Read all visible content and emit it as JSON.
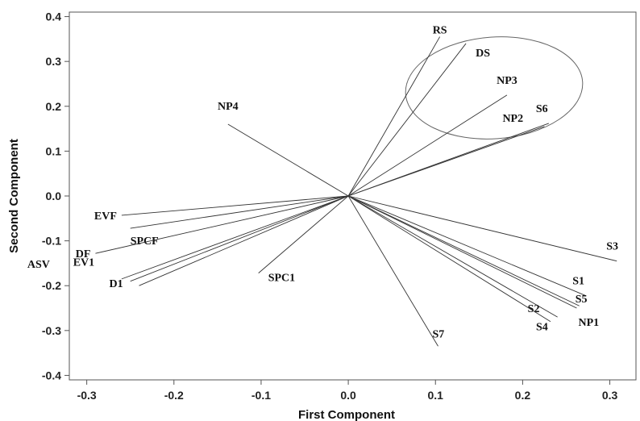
{
  "chart_data": {
    "type": "scatter",
    "subtype": "biplot-loading-vectors",
    "xlabel": "First Component",
    "ylabel": "Second Component",
    "xlim": [
      -0.32,
      0.33
    ],
    "ylim": [
      -0.41,
      0.41
    ],
    "x_ticks": [
      -0.3,
      -0.2,
      -0.1,
      0.0,
      0.1,
      0.2,
      0.3
    ],
    "x_tick_labels": [
      "-0.3",
      "-0.2",
      "-0.1",
      "0.0",
      "0.1",
      "0.2",
      "0.3"
    ],
    "y_ticks": [
      0.4,
      0.3,
      0.2,
      0.1,
      0.0,
      -0.1,
      -0.2,
      -0.3,
      -0.4
    ],
    "y_tick_labels": [
      "0.4",
      "0.3",
      "0.2",
      "0.1",
      "0.0",
      "-0.1",
      "-0.2",
      "-0.3",
      "-0.4"
    ],
    "grid": false,
    "vectors": [
      {
        "name": "RS",
        "x": 0.105,
        "y": 0.355
      },
      {
        "name": "DS",
        "x": 0.135,
        "y": 0.34
      },
      {
        "name": "NP3",
        "x": 0.182,
        "y": 0.225
      },
      {
        "name": "S6",
        "x": 0.23,
        "y": 0.162
      },
      {
        "name": "NP2",
        "x": 0.225,
        "y": 0.155
      },
      {
        "name": "NP4",
        "x": -0.138,
        "y": 0.16
      },
      {
        "name": "EVF",
        "x": -0.26,
        "y": -0.043
      },
      {
        "name": "SPCF",
        "x": -0.25,
        "y": -0.072
      },
      {
        "name": "DF",
        "x": -0.29,
        "y": -0.128
      },
      {
        "name": "ASV",
        "x": -0.26,
        "y": -0.185
      },
      {
        "name": "EV1",
        "x": -0.25,
        "y": -0.19
      },
      {
        "name": "D1",
        "x": -0.24,
        "y": -0.2
      },
      {
        "name": "SPC1",
        "x": -0.103,
        "y": -0.172
      },
      {
        "name": "S7",
        "x": 0.103,
        "y": -0.335
      },
      {
        "name": "S3",
        "x": 0.308,
        "y": -0.145
      },
      {
        "name": "S1",
        "x": 0.272,
        "y": -0.222
      },
      {
        "name": "S5",
        "x": 0.265,
        "y": -0.245
      },
      {
        "name": "NP1",
        "x": 0.262,
        "y": -0.25
      },
      {
        "name": "S2",
        "x": 0.24,
        "y": -0.27
      },
      {
        "name": "S4",
        "x": 0.232,
        "y": -0.28
      }
    ]
  }
}
